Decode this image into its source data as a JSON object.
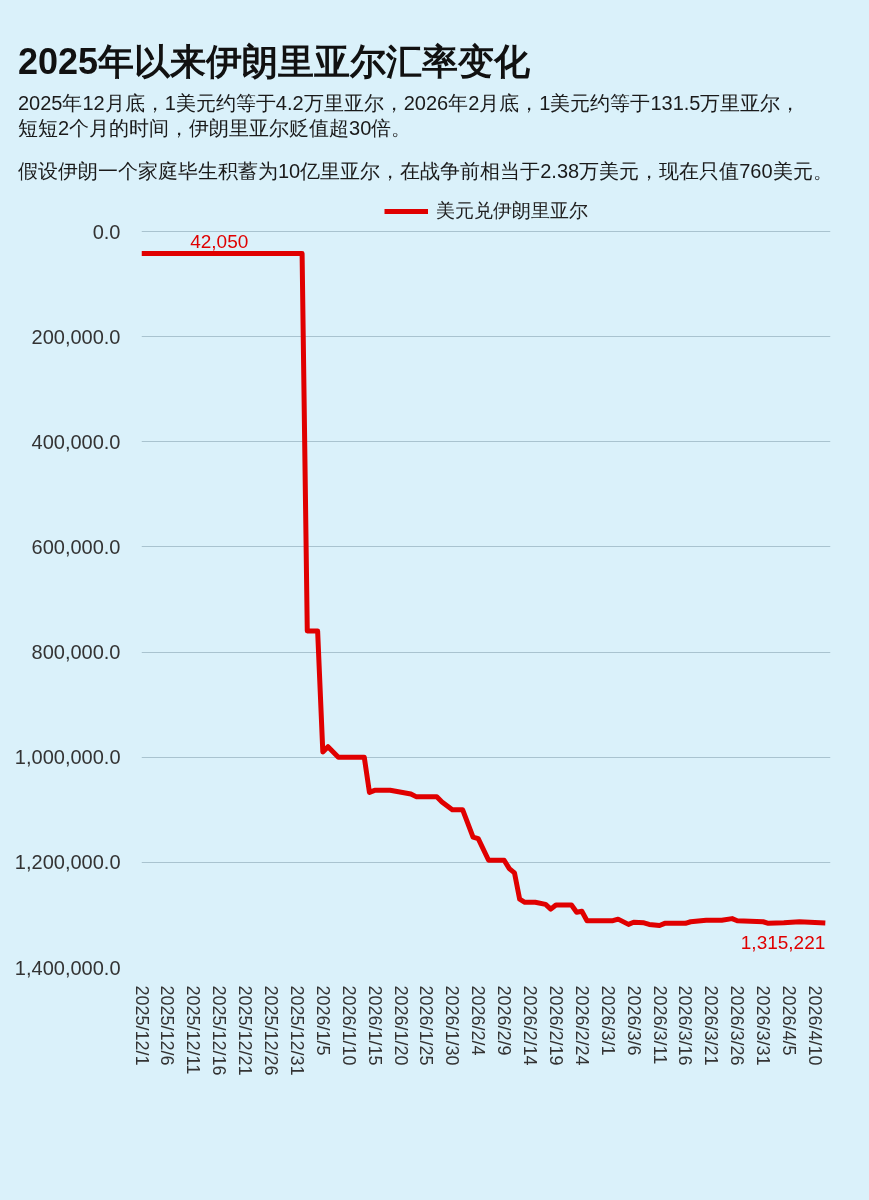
{
  "chart_data": {
    "type": "line",
    "title": "2025年以来伊朗里亚尔汇率变化",
    "subtitle": "2025年12月底，1美元约等于4.2万里亚尔，2026年2月底，1美元约等于131.5万里亚尔，短短2个月的时间，伊朗里亚尔贬值超30倍。",
    "annotations": [
      "假设伊朗一个家庭毕生积蓄为10亿里亚尔，在战争前相当于2.38万美元，现在只值760美元。"
    ],
    "x": [
      "2025-12-01",
      "2025-12-16",
      "2026-01-01",
      "2026-01-02",
      "2026-01-04",
      "2026-01-05",
      "2026-01-06",
      "2026-01-08",
      "2026-01-13",
      "2026-01-14",
      "2026-01-15",
      "2026-01-18",
      "2026-01-22",
      "2026-01-23",
      "2026-01-27",
      "2026-01-28",
      "2026-01-30",
      "2026-02-01",
      "2026-02-03",
      "2026-02-04",
      "2026-02-06",
      "2026-02-09",
      "2026-02-10",
      "2026-02-11",
      "2026-02-12",
      "2026-02-13",
      "2026-02-15",
      "2026-02-17",
      "2026-02-18",
      "2026-02-19",
      "2026-02-22",
      "2026-02-23",
      "2026-02-24",
      "2026-02-25",
      "2026-03-02",
      "2026-03-03",
      "2026-03-05",
      "2026-03-06",
      "2026-03-08",
      "2026-03-09",
      "2026-03-11",
      "2026-03-12",
      "2026-03-16",
      "2026-03-17",
      "2026-03-20",
      "2026-03-23",
      "2026-03-25",
      "2026-03-26",
      "2026-03-31",
      "2026-04-01",
      "2026-04-04",
      "2026-04-07",
      "2026-04-12"
    ],
    "xlim": [
      "2025-12-01",
      "2026-04-13"
    ],
    "xticks": [
      {
        "value": "2025-12-01",
        "label": "2025/12/1"
      },
      {
        "value": "2025-12-06",
        "label": "2025/12/6"
      },
      {
        "value": "2025-12-11",
        "label": "2025/12/11"
      },
      {
        "value": "2025-12-16",
        "label": "2025/12/16"
      },
      {
        "value": "2025-12-21",
        "label": "2025/12/21"
      },
      {
        "value": "2025-12-26",
        "label": "2025/12/26"
      },
      {
        "value": "2025-12-31",
        "label": "2025/12/31"
      },
      {
        "value": "2026-01-05",
        "label": "2026/1/5"
      },
      {
        "value": "2026-01-10",
        "label": "2026/1/10"
      },
      {
        "value": "2026-01-15",
        "label": "2026/1/15"
      },
      {
        "value": "2026-01-20",
        "label": "2026/1/20"
      },
      {
        "value": "2026-01-25",
        "label": "2026/1/25"
      },
      {
        "value": "2026-01-30",
        "label": "2026/1/30"
      },
      {
        "value": "2026-02-04",
        "label": "2026/2/4"
      },
      {
        "value": "2026-02-09",
        "label": "2026/2/9"
      },
      {
        "value": "2026-02-14",
        "label": "2026/2/14"
      },
      {
        "value": "2026-02-19",
        "label": "2026/2/19"
      },
      {
        "value": "2026-02-24",
        "label": "2026/2/24"
      },
      {
        "value": "2026-03-01",
        "label": "2026/3/1"
      },
      {
        "value": "2026-03-06",
        "label": "2026/3/6"
      },
      {
        "value": "2026-03-11",
        "label": "2026/3/11"
      },
      {
        "value": "2026-03-16",
        "label": "2026/3/16"
      },
      {
        "value": "2026-03-21",
        "label": "2026/3/21"
      },
      {
        "value": "2026-03-26",
        "label": "2026/3/26"
      },
      {
        "value": "2026-03-31",
        "label": "2026/3/31"
      },
      {
        "value": "2026-04-05",
        "label": "2026/4/5"
      },
      {
        "value": "2026-04-10",
        "label": "2026/4/10"
      }
    ],
    "ylim": [
      1400000,
      0
    ],
    "yticks": [
      {
        "value": 0,
        "label": "0.0"
      },
      {
        "value": 200000,
        "label": "200,000.0"
      },
      {
        "value": 400000,
        "label": "400,000.0"
      },
      {
        "value": 600000,
        "label": "600,000.0"
      },
      {
        "value": 800000,
        "label": "800,000.0"
      },
      {
        "value": 1000000,
        "label": "1,000,000.0"
      },
      {
        "value": 1200000,
        "label": "1,200,000.0"
      },
      {
        "value": 1400000,
        "label": "1,400,000.0"
      }
    ],
    "series": [
      {
        "name": "美元兑伊朗里亚尔",
        "color": "#e00000",
        "values": [
          42050,
          42050,
          42050,
          760000,
          760000,
          990000,
          980000,
          1000000,
          1000000,
          1067000,
          1063000,
          1063000,
          1070000,
          1075000,
          1075000,
          1085000,
          1100000,
          1100000,
          1152000,
          1155000,
          1196000,
          1196000,
          1212000,
          1220000,
          1270000,
          1276000,
          1276000,
          1280000,
          1289000,
          1281000,
          1281000,
          1295000,
          1293000,
          1311000,
          1311000,
          1308000,
          1318000,
          1314000,
          1315000,
          1318000,
          1320000,
          1316000,
          1316000,
          1313000,
          1310000,
          1310000,
          1307000,
          1311000,
          1313000,
          1316000,
          1315000,
          1313000,
          1315221
        ],
        "value_labels": [
          null,
          "42,050",
          null,
          null,
          null,
          null,
          null,
          null,
          null,
          null,
          null,
          null,
          null,
          null,
          null,
          null,
          null,
          null,
          null,
          null,
          null,
          null,
          null,
          null,
          null,
          null,
          null,
          null,
          null,
          null,
          null,
          null,
          null,
          null,
          null,
          null,
          null,
          null,
          null,
          null,
          null,
          null,
          null,
          null,
          null,
          null,
          null,
          null,
          null,
          null,
          null,
          null,
          "1,315,221"
        ]
      }
    ],
    "grid": "y",
    "legend": "top",
    "line_style": "solid"
  }
}
